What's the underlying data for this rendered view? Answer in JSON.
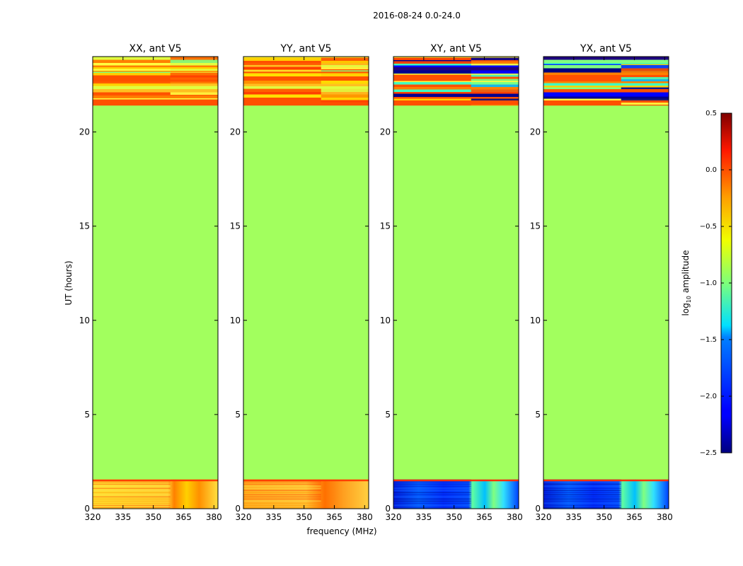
{
  "suptitle": "2016-08-24 0.0-24.0",
  "chart_data": {
    "type": "heatmap",
    "xlabel": "frequency (MHz)",
    "ylabel": "UT (hours)",
    "xlim": [
      320,
      382
    ],
    "ylim": [
      0,
      24
    ],
    "xticks": [
      320,
      335,
      350,
      365,
      380
    ],
    "yticks": [
      0,
      5,
      10,
      15,
      20
    ],
    "colorbar": {
      "label": "log10 amplitude",
      "label_base": "log",
      "label_sub": "10",
      "label_rest": " amplitude",
      "colormap": "jet",
      "range": [
        -2.5,
        0.5
      ],
      "ticks": [
        "0.5",
        "0.0",
        "−0.5",
        "−1.0",
        "−1.5",
        "−2.0",
        "−2.5"
      ]
    },
    "panels": [
      {
        "title": "XX, ant V5",
        "fill_value": -0.9,
        "bands": [
          {
            "y0": 0,
            "y1": 1.55,
            "value": -0.35,
            "note": "data, yellow/orange"
          },
          {
            "y0": 1.55,
            "y1": 21.4,
            "value": -0.9,
            "note": "flagged / uniform"
          },
          {
            "y0": 21.4,
            "y1": 24,
            "value": -0.1,
            "note": "data, striped orange"
          }
        ]
      },
      {
        "title": "YY, ant V5",
        "fill_value": -0.9,
        "bands": [
          {
            "y0": 0,
            "y1": 1.55,
            "value": -0.2,
            "note": "data, orange"
          },
          {
            "y0": 1.55,
            "y1": 21.4,
            "value": -0.9,
            "note": "flagged / uniform"
          },
          {
            "y0": 21.4,
            "y1": 24,
            "value": -0.1,
            "note": "data, striped orange"
          }
        ]
      },
      {
        "title": "XY, ant V5",
        "fill_value": -0.9,
        "bands": [
          {
            "y0": 0,
            "y1": 1.55,
            "value": -2.0,
            "note": "data, blue"
          },
          {
            "y0": 1.55,
            "y1": 21.4,
            "value": -0.9,
            "note": "flagged / uniform"
          },
          {
            "y0": 21.4,
            "y1": 24,
            "value": -0.5,
            "note": "data, mixed stripes"
          }
        ]
      },
      {
        "title": "YX, ant V5",
        "fill_value": -0.9,
        "bands": [
          {
            "y0": 0,
            "y1": 1.55,
            "value": -2.0,
            "note": "data, blue"
          },
          {
            "y0": 1.55,
            "y1": 21.4,
            "value": -0.9,
            "note": "flagged / uniform"
          },
          {
            "y0": 21.4,
            "y1": 24,
            "value": -0.5,
            "note": "data, mixed stripes"
          }
        ]
      }
    ]
  }
}
